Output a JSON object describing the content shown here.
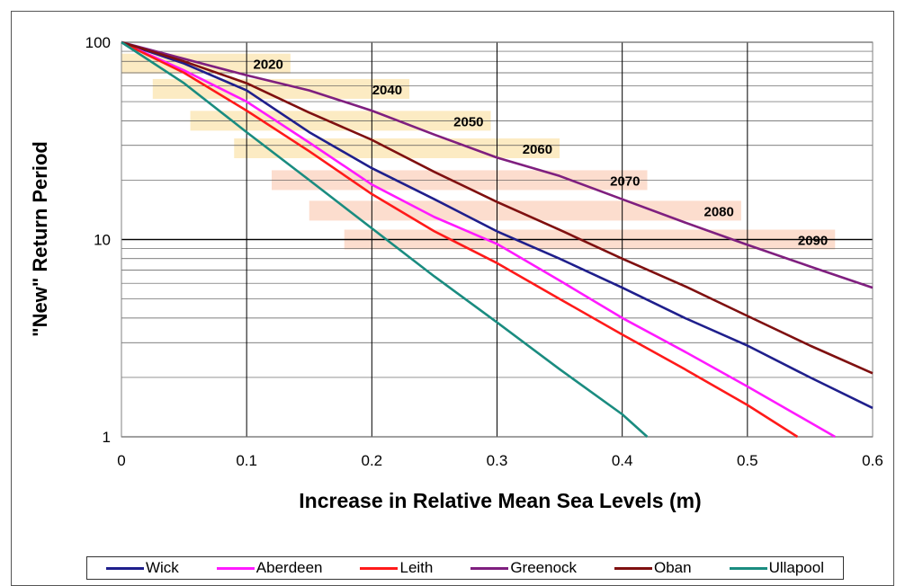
{
  "chart_data": {
    "type": "line",
    "title": "",
    "xlabel": "Increase in Relative Mean Sea Levels (m)",
    "ylabel": "\"New\" Return Period",
    "xlim": [
      0,
      0.6
    ],
    "ylim": [
      1,
      100
    ],
    "yscale": "log",
    "grid": true,
    "legend_position": "bottom",
    "x_ticks": [
      "0",
      "0.1",
      "0.2",
      "0.3",
      "0.4",
      "0.5",
      "0.6"
    ],
    "y_ticks": [
      "1",
      "10",
      "100"
    ],
    "series": [
      {
        "name": "Wick",
        "color": "#1f1f8c",
        "points": [
          [
            0,
            100
          ],
          [
            0.05,
            78
          ],
          [
            0.1,
            57
          ],
          [
            0.15,
            35
          ],
          [
            0.2,
            23
          ],
          [
            0.25,
            16
          ],
          [
            0.3,
            11
          ],
          [
            0.35,
            8
          ],
          [
            0.4,
            5.7
          ],
          [
            0.45,
            4
          ],
          [
            0.5,
            2.9
          ],
          [
            0.55,
            2
          ],
          [
            0.6,
            1.4
          ]
        ]
      },
      {
        "name": "Aberdeen",
        "color": "#ff1aff",
        "points": [
          [
            0,
            100
          ],
          [
            0.05,
            72
          ],
          [
            0.1,
            50
          ],
          [
            0.15,
            31
          ],
          [
            0.2,
            19
          ],
          [
            0.25,
            13
          ],
          [
            0.3,
            9.5
          ],
          [
            0.35,
            6.2
          ],
          [
            0.4,
            4
          ],
          [
            0.45,
            2.7
          ],
          [
            0.5,
            1.8
          ],
          [
            0.57,
            1
          ]
        ]
      },
      {
        "name": "Leith",
        "color": "#ff1a1a",
        "points": [
          [
            0,
            100
          ],
          [
            0.05,
            70
          ],
          [
            0.1,
            45
          ],
          [
            0.15,
            28
          ],
          [
            0.2,
            17
          ],
          [
            0.25,
            11
          ],
          [
            0.3,
            7.6
          ],
          [
            0.35,
            5
          ],
          [
            0.4,
            3.3
          ],
          [
            0.45,
            2.2
          ],
          [
            0.5,
            1.45
          ],
          [
            0.54,
            1
          ]
        ]
      },
      {
        "name": "Greenock",
        "color": "#7f1f7f",
        "points": [
          [
            0,
            100
          ],
          [
            0.1,
            68
          ],
          [
            0.15,
            57
          ],
          [
            0.2,
            45
          ],
          [
            0.25,
            34
          ],
          [
            0.3,
            26
          ],
          [
            0.35,
            21
          ],
          [
            0.4,
            16
          ],
          [
            0.45,
            12.2
          ],
          [
            0.5,
            9.4
          ],
          [
            0.55,
            7.3
          ],
          [
            0.6,
            5.7
          ]
        ]
      },
      {
        "name": "Oban",
        "color": "#7f1010",
        "points": [
          [
            0,
            100
          ],
          [
            0.05,
            80
          ],
          [
            0.1,
            62
          ],
          [
            0.15,
            44
          ],
          [
            0.2,
            32
          ],
          [
            0.25,
            22
          ],
          [
            0.3,
            15.5
          ],
          [
            0.35,
            11.2
          ],
          [
            0.4,
            8
          ],
          [
            0.45,
            5.8
          ],
          [
            0.5,
            4.1
          ],
          [
            0.55,
            2.9
          ],
          [
            0.6,
            2.1
          ]
        ]
      },
      {
        "name": "Ullapool",
        "color": "#1a8c80",
        "points": [
          [
            0,
            100
          ],
          [
            0.05,
            62
          ],
          [
            0.1,
            35
          ],
          [
            0.15,
            20
          ],
          [
            0.2,
            11.4
          ],
          [
            0.25,
            6.5
          ],
          [
            0.3,
            3.8
          ],
          [
            0.35,
            2.2
          ],
          [
            0.4,
            1.3
          ],
          [
            0.42,
            1
          ]
        ]
      }
    ],
    "annotations": [
      {
        "label": "2020",
        "x_start": 0.0,
        "x_end": 0.135,
        "y": 78
      },
      {
        "label": "2040",
        "x_start": 0.025,
        "x_end": 0.23,
        "y": 58
      },
      {
        "label": "2050",
        "x_start": 0.055,
        "x_end": 0.295,
        "y": 40
      },
      {
        "label": "2060",
        "x_start": 0.09,
        "x_end": 0.35,
        "y": 29
      },
      {
        "label": "2070",
        "x_start": 0.12,
        "x_end": 0.42,
        "y": 20
      },
      {
        "label": "2080",
        "x_start": 0.15,
        "x_end": 0.495,
        "y": 14
      },
      {
        "label": "2090",
        "x_start": 0.178,
        "x_end": 0.57,
        "y": 10
      }
    ]
  }
}
